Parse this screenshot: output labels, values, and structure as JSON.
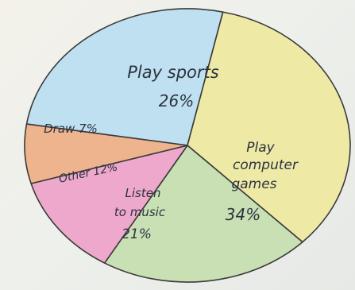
{
  "chart_data": {
    "type": "pie",
    "slices": [
      {
        "name": "Play sports",
        "value": 26,
        "label": "26%",
        "color": "#bfe0f0"
      },
      {
        "name": "Play computer games",
        "value": 34,
        "label": "34%",
        "color": "#eeeaa6"
      },
      {
        "name": "Listen to music",
        "value": 21,
        "label": "21%",
        "color": "#c9dfb4"
      },
      {
        "name": "Other",
        "value": 12,
        "label": "12%",
        "color": "#eea8cc"
      },
      {
        "name": "Draw",
        "value": 7,
        "label": "7%",
        "color": "#eeb48e"
      }
    ],
    "text": {
      "sports_name": "Play sports",
      "sports_pct": "26%",
      "games_l1": "Play",
      "games_l2": "computer",
      "games_l3": "games",
      "games_pct": "34%",
      "music_l1": "Listen",
      "music_l2": "to music",
      "music_pct": "21%",
      "other": "Other 12%",
      "draw": "Draw 7%"
    },
    "title": "",
    "legend": "none",
    "stroke_color": "#3a3a3a"
  }
}
